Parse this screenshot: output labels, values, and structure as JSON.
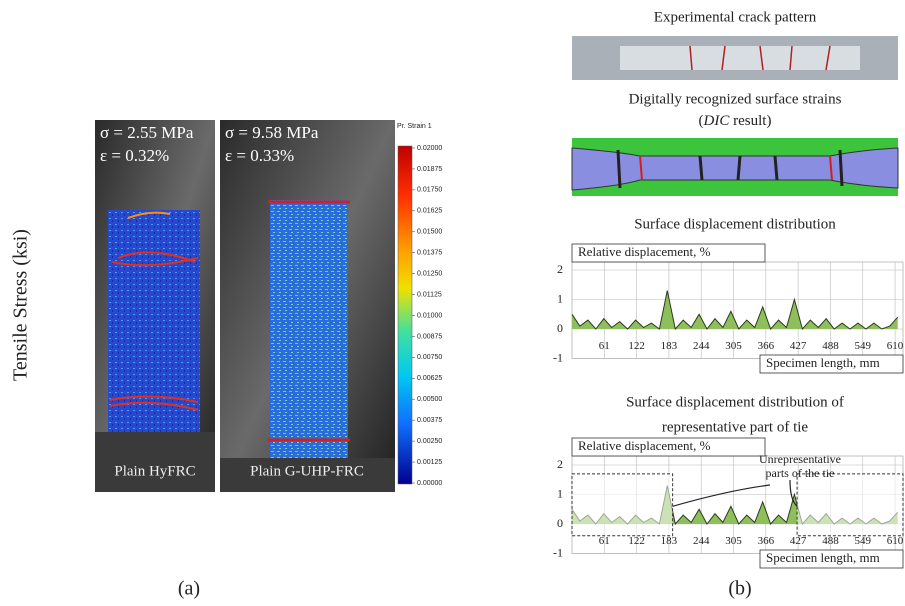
{
  "panel_a": {
    "y_axis_label": "Tensile Stress (ksi)",
    "photos": [
      {
        "stress": "σ = 2.55 MPa",
        "strain": "ε = 0.32%",
        "label": "Plain HyFRC"
      },
      {
        "stress": "σ = 9.58 MPa",
        "strain": "ε = 0.33%",
        "label": "Plain G-UHP-FRC"
      }
    ],
    "colorbar": {
      "title": "Pr. Strain 1",
      "ticks": [
        "0.02000",
        "0.01875",
        "0.01750",
        "0.01625",
        "0.01500",
        "0.01375",
        "0.01250",
        "0.01125",
        "0.01000",
        "0.00875",
        "0.00750",
        "0.00625",
        "0.00500",
        "0.00375",
        "0.00250",
        "0.00125",
        "0.00000"
      ]
    },
    "caption": "(a)"
  },
  "panel_b": {
    "crack_title": "Experimental crack pattern",
    "dic_title": "Digitally recognized surface strains",
    "dic_subtitle": {
      "open": "(",
      "italic": "DIC",
      "close": " result)"
    },
    "charts": [
      {
        "type": "area",
        "title": [
          "Surface displacement distribution"
        ],
        "y_label": "Relative displacement, %",
        "x_label": "Specimen length, mm",
        "ylim": [
          -1,
          2
        ],
        "yticks": [
          2,
          1,
          0,
          -1
        ],
        "xlim": [
          0,
          625
        ],
        "xticks": [
          61,
          122,
          183,
          244,
          305,
          366,
          427,
          488,
          549,
          610
        ],
        "color": "#8fbf5c",
        "x": [
          0,
          15,
          30,
          45,
          60,
          75,
          90,
          105,
          120,
          135,
          150,
          165,
          180,
          195,
          210,
          225,
          240,
          255,
          270,
          285,
          300,
          315,
          330,
          345,
          360,
          375,
          390,
          405,
          420,
          435,
          450,
          465,
          480,
          495,
          510,
          525,
          540,
          555,
          570,
          585,
          600,
          615
        ],
        "values": [
          0.5,
          0.1,
          0.3,
          0.0,
          0.35,
          0.05,
          0.25,
          0.0,
          0.3,
          0.05,
          0.2,
          0.0,
          1.3,
          0.0,
          0.3,
          0.05,
          0.5,
          0.0,
          0.35,
          0.05,
          0.6,
          0.0,
          0.3,
          0.05,
          0.75,
          0.0,
          0.3,
          0.05,
          1.0,
          0.0,
          0.3,
          0.05,
          0.35,
          0.0,
          0.2,
          0.0,
          0.2,
          0.0,
          0.2,
          0.0,
          0.1,
          0.4
        ]
      },
      {
        "type": "area",
        "title": [
          "Surface displacement distribution of",
          "representative part of tie"
        ],
        "y_label": "Relative displacement, %",
        "x_label": "Specimen length, mm",
        "annotation": [
          "Unrepresentative",
          "parts of the tie"
        ],
        "ylim": [
          -1,
          2
        ],
        "yticks": [
          2,
          1,
          0,
          -1
        ],
        "xlim": [
          0,
          625
        ],
        "xticks": [
          61,
          122,
          183,
          244,
          305,
          366,
          427,
          488,
          549,
          610
        ],
        "color": "#8fbf5c",
        "x": [
          0,
          15,
          30,
          45,
          60,
          75,
          90,
          105,
          120,
          135,
          150,
          165,
          180,
          195,
          210,
          225,
          240,
          255,
          270,
          285,
          300,
          315,
          330,
          345,
          360,
          375,
          390,
          405,
          420,
          435,
          450,
          465,
          480,
          495,
          510,
          525,
          540,
          555,
          570,
          585,
          600,
          615
        ],
        "values": [
          0.5,
          0.1,
          0.3,
          0.0,
          0.35,
          0.05,
          0.25,
          0.0,
          0.3,
          0.05,
          0.2,
          0.0,
          1.3,
          0.0,
          0.3,
          0.05,
          0.5,
          0.0,
          0.35,
          0.05,
          0.6,
          0.0,
          0.3,
          0.05,
          0.75,
          0.0,
          0.3,
          0.05,
          1.0,
          0.0,
          0.3,
          0.05,
          0.35,
          0.0,
          0.2,
          0.0,
          0.2,
          0.0,
          0.2,
          0.0,
          0.1,
          0.4
        ]
      }
    ],
    "caption": "(b)"
  }
}
